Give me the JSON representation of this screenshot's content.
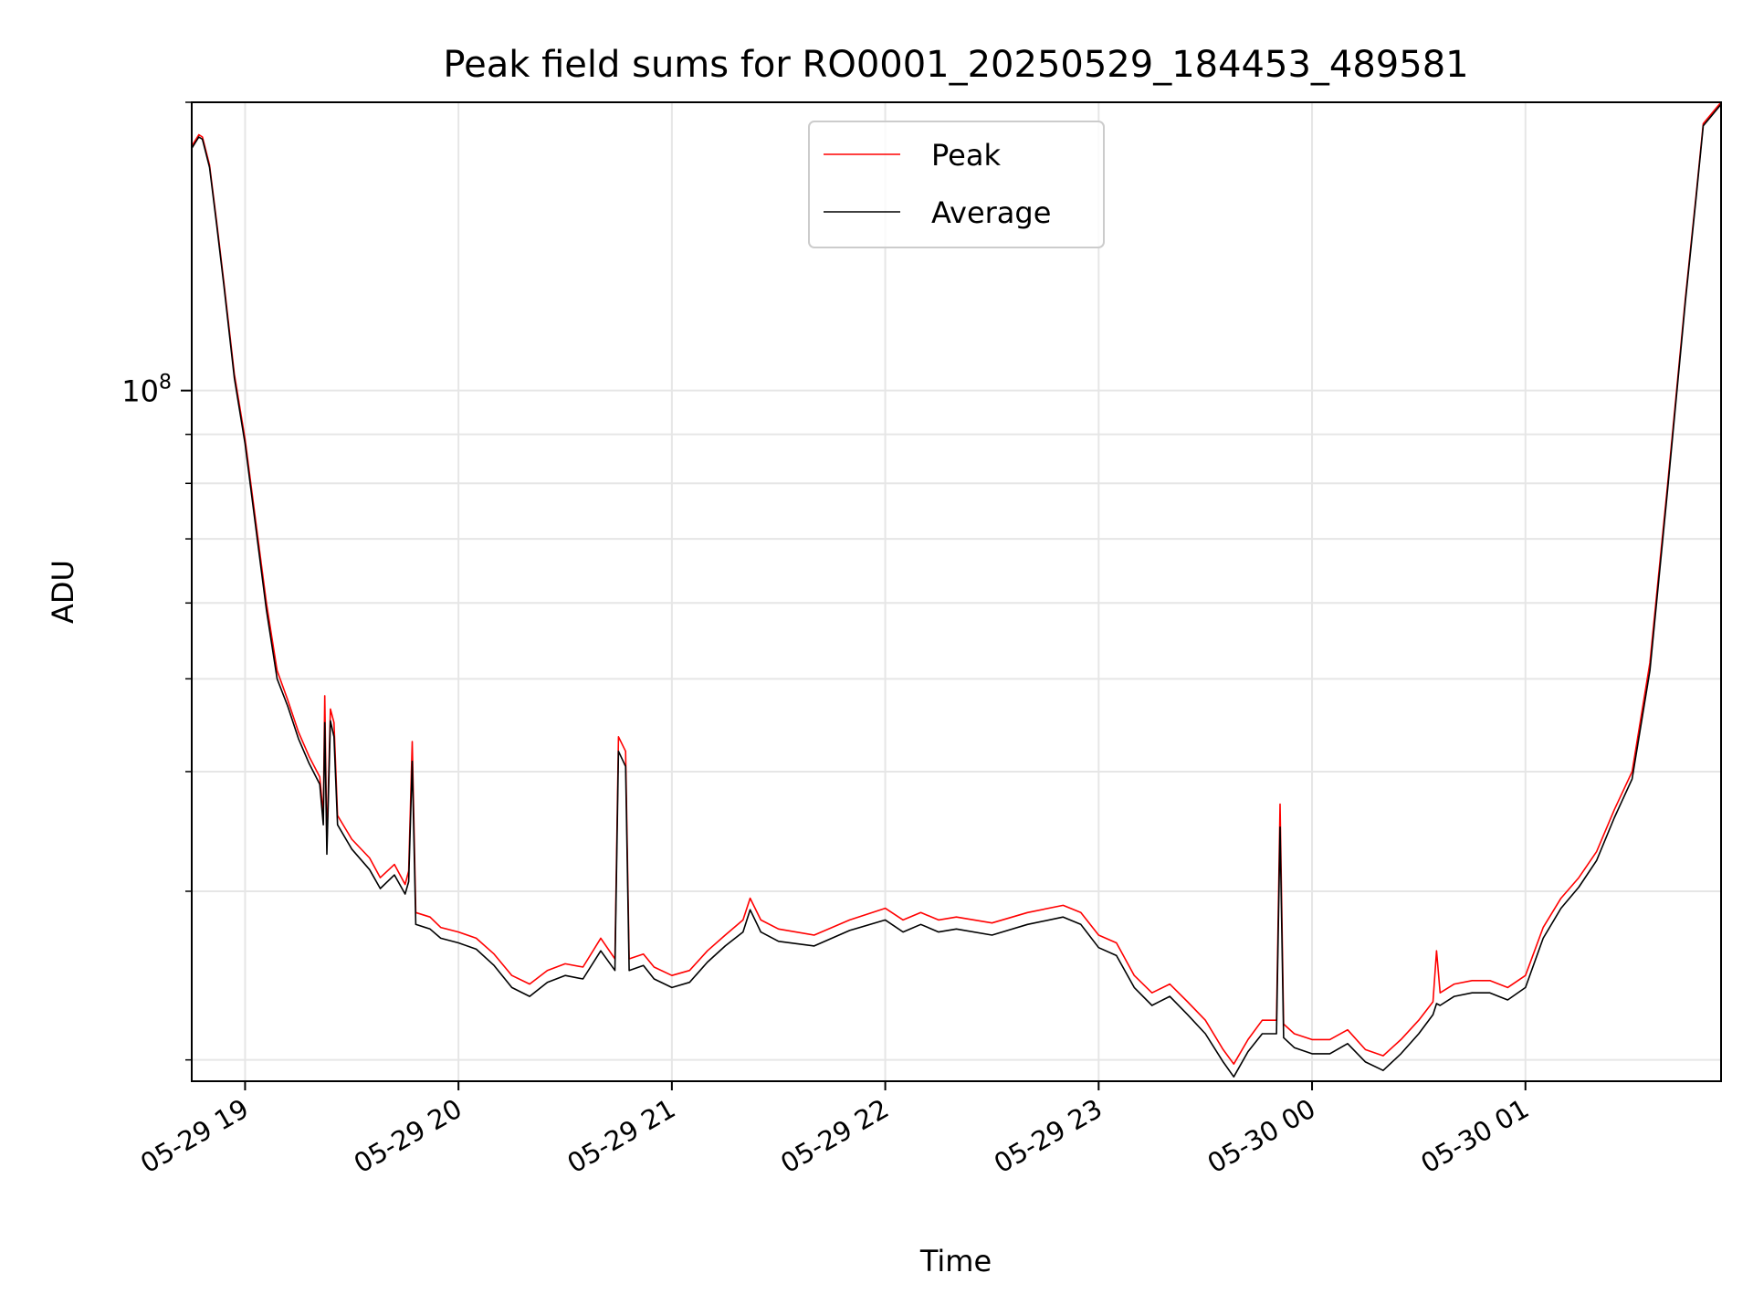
{
  "chart_data": {
    "type": "line",
    "title": "Peak field sums for RO0001_20250529_184453_489581",
    "xlabel": "Time",
    "ylabel": "ADU",
    "y_scale": "log",
    "ylim": [
      19000000,
      200000000
    ],
    "y_major_tick": {
      "value": 100000000,
      "label_base": "10",
      "label_exp": "8"
    },
    "y_minor_ticks": [
      20000000,
      30000000,
      40000000,
      50000000,
      60000000,
      70000000,
      80000000,
      90000000,
      200000000
    ],
    "xlim": [
      "2025-05-29 18:45",
      "2025-05-30 01:55"
    ],
    "x_ticks": [
      {
        "t": "2025-05-29 19:00",
        "label": "05-29 19"
      },
      {
        "t": "2025-05-29 20:00",
        "label": "05-29 20"
      },
      {
        "t": "2025-05-29 21:00",
        "label": "05-29 21"
      },
      {
        "t": "2025-05-29 22:00",
        "label": "05-29 22"
      },
      {
        "t": "2025-05-29 23:00",
        "label": "05-29 23"
      },
      {
        "t": "2025-05-30 00:00",
        "label": "05-30 00"
      },
      {
        "t": "2025-05-30 01:00",
        "label": "05-30 01"
      }
    ],
    "grid": true,
    "legend_position": "upper center",
    "series": [
      {
        "name": "Peak",
        "color": "#ff0000",
        "points": [
          [
            "2025-05-29 18:45",
            180000000
          ],
          [
            "2025-05-29 18:47",
            185000000
          ],
          [
            "2025-05-29 18:48",
            184000000
          ],
          [
            "2025-05-29 18:50",
            172000000
          ],
          [
            "2025-05-29 18:52",
            150000000
          ],
          [
            "2025-05-29 18:54",
            130000000
          ],
          [
            "2025-05-29 18:57",
            104000000
          ],
          [
            "2025-05-29 19:00",
            89000000
          ],
          [
            "2025-05-29 19:03",
            73000000
          ],
          [
            "2025-05-29 19:06",
            60000000
          ],
          [
            "2025-05-29 19:09",
            51000000
          ],
          [
            "2025-05-29 19:12",
            47500000
          ],
          [
            "2025-05-29 19:15",
            44000000
          ],
          [
            "2025-05-29 19:18",
            41500000
          ],
          [
            "2025-05-29 19:21",
            39500000
          ],
          [
            "2025-05-29 19:22",
            36000000
          ],
          [
            "2025-05-29 19:22.4",
            48000000
          ],
          [
            "2025-05-29 19:23",
            33500000
          ],
          [
            "2025-05-29 19:24",
            46500000
          ],
          [
            "2025-05-29 19:25",
            45000000
          ],
          [
            "2025-05-29 19:26",
            36000000
          ],
          [
            "2025-05-29 19:30",
            34000000
          ],
          [
            "2025-05-29 19:35",
            32500000
          ],
          [
            "2025-05-29 19:38",
            31000000
          ],
          [
            "2025-05-29 19:42",
            32000000
          ],
          [
            "2025-05-29 19:45",
            30500000
          ],
          [
            "2025-05-29 19:46",
            31500000
          ],
          [
            "2025-05-29 19:47",
            43000000
          ],
          [
            "2025-05-29 19:48",
            28500000
          ],
          [
            "2025-05-29 19:52",
            28200000
          ],
          [
            "2025-05-29 19:55",
            27500000
          ],
          [
            "2025-05-29 20:00",
            27200000
          ],
          [
            "2025-05-29 20:05",
            26800000
          ],
          [
            "2025-05-29 20:10",
            25800000
          ],
          [
            "2025-05-29 20:15",
            24500000
          ],
          [
            "2025-05-29 20:20",
            24000000
          ],
          [
            "2025-05-29 20:25",
            24800000
          ],
          [
            "2025-05-29 20:30",
            25200000
          ],
          [
            "2025-05-29 20:35",
            25000000
          ],
          [
            "2025-05-29 20:40",
            26800000
          ],
          [
            "2025-05-29 20:44",
            25500000
          ],
          [
            "2025-05-29 20:45",
            43500000
          ],
          [
            "2025-05-29 20:47",
            42000000
          ],
          [
            "2025-05-29 20:48",
            25500000
          ],
          [
            "2025-05-29 20:52",
            25800000
          ],
          [
            "2025-05-29 20:55",
            25000000
          ],
          [
            "2025-05-29 21:00",
            24500000
          ],
          [
            "2025-05-29 21:05",
            24800000
          ],
          [
            "2025-05-29 21:10",
            26000000
          ],
          [
            "2025-05-29 21:15",
            27000000
          ],
          [
            "2025-05-29 21:20",
            28000000
          ],
          [
            "2025-05-29 21:22",
            29500000
          ],
          [
            "2025-05-29 21:25",
            28000000
          ],
          [
            "2025-05-29 21:30",
            27400000
          ],
          [
            "2025-05-29 21:40",
            27000000
          ],
          [
            "2025-05-29 21:50",
            28000000
          ],
          [
            "2025-05-29 22:00",
            28800000
          ],
          [
            "2025-05-29 22:05",
            28000000
          ],
          [
            "2025-05-29 22:10",
            28500000
          ],
          [
            "2025-05-29 22:15",
            28000000
          ],
          [
            "2025-05-29 22:20",
            28200000
          ],
          [
            "2025-05-29 22:30",
            27800000
          ],
          [
            "2025-05-29 22:40",
            28500000
          ],
          [
            "2025-05-29 22:50",
            29000000
          ],
          [
            "2025-05-29 22:55",
            28500000
          ],
          [
            "2025-05-29 23:00",
            27000000
          ],
          [
            "2025-05-29 23:05",
            26500000
          ],
          [
            "2025-05-29 23:10",
            24500000
          ],
          [
            "2025-05-29 23:15",
            23500000
          ],
          [
            "2025-05-29 23:20",
            24000000
          ],
          [
            "2025-05-29 23:25",
            23000000
          ],
          [
            "2025-05-29 23:30",
            22000000
          ],
          [
            "2025-05-29 23:35",
            20500000
          ],
          [
            "2025-05-29 23:38",
            19800000
          ],
          [
            "2025-05-29 23:42",
            21000000
          ],
          [
            "2025-05-29 23:46",
            22000000
          ],
          [
            "2025-05-29 23:50",
            22000000
          ],
          [
            "2025-05-29 23:51",
            37000000
          ],
          [
            "2025-05-29 23:52",
            21800000
          ],
          [
            "2025-05-29 23:55",
            21300000
          ],
          [
            "2025-05-30 00:00",
            21000000
          ],
          [
            "2025-05-30 00:05",
            21000000
          ],
          [
            "2025-05-30 00:10",
            21500000
          ],
          [
            "2025-05-30 00:15",
            20500000
          ],
          [
            "2025-05-30 00:20",
            20200000
          ],
          [
            "2025-05-30 00:25",
            21000000
          ],
          [
            "2025-05-30 00:30",
            22000000
          ],
          [
            "2025-05-30 00:34",
            23000000
          ],
          [
            "2025-05-30 00:35",
            26000000
          ],
          [
            "2025-05-30 00:36",
            23500000
          ],
          [
            "2025-05-30 00:40",
            24000000
          ],
          [
            "2025-05-30 00:45",
            24200000
          ],
          [
            "2025-05-30 00:50",
            24200000
          ],
          [
            "2025-05-30 00:55",
            23800000
          ],
          [
            "2025-05-30 01:00",
            24500000
          ],
          [
            "2025-05-30 01:05",
            27500000
          ],
          [
            "2025-05-30 01:10",
            29500000
          ],
          [
            "2025-05-30 01:15",
            31000000
          ],
          [
            "2025-05-30 01:20",
            33000000
          ],
          [
            "2025-05-30 01:25",
            36500000
          ],
          [
            "2025-05-30 01:30",
            40000000
          ],
          [
            "2025-05-30 01:35",
            52000000
          ],
          [
            "2025-05-30 01:40",
            80000000
          ],
          [
            "2025-05-30 01:45",
            125000000
          ],
          [
            "2025-05-30 01:48",
            160000000
          ],
          [
            "2025-05-30 01:50",
            190000000
          ],
          [
            "2025-05-30 01:55",
            200000000
          ]
        ]
      },
      {
        "name": "Average",
        "color": "#000000",
        "points": [
          [
            "2025-05-29 18:45",
            179000000
          ],
          [
            "2025-05-29 18:47",
            184000000
          ],
          [
            "2025-05-29 18:48",
            183000000
          ],
          [
            "2025-05-29 18:50",
            171000000
          ],
          [
            "2025-05-29 18:52",
            149000000
          ],
          [
            "2025-05-29 18:54",
            129000000
          ],
          [
            "2025-05-29 18:57",
            103000000
          ],
          [
            "2025-05-29 19:00",
            88000000
          ],
          [
            "2025-05-29 19:03",
            72000000
          ],
          [
            "2025-05-29 19:06",
            59000000
          ],
          [
            "2025-05-29 19:09",
            50000000
          ],
          [
            "2025-05-29 19:12",
            46800000
          ],
          [
            "2025-05-29 19:15",
            43300000
          ],
          [
            "2025-05-29 19:18",
            40800000
          ],
          [
            "2025-05-29 19:21",
            38800000
          ],
          [
            "2025-05-29 19:22",
            35200000
          ],
          [
            "2025-05-29 19:22.4",
            45000000
          ],
          [
            "2025-05-29 19:23",
            32800000
          ],
          [
            "2025-05-29 19:24",
            45200000
          ],
          [
            "2025-05-29 19:25",
            43500000
          ],
          [
            "2025-05-29 19:26",
            35200000
          ],
          [
            "2025-05-29 19:30",
            33200000
          ],
          [
            "2025-05-29 19:35",
            31600000
          ],
          [
            "2025-05-29 19:38",
            30200000
          ],
          [
            "2025-05-29 19:42",
            31200000
          ],
          [
            "2025-05-29 19:45",
            29800000
          ],
          [
            "2025-05-29 19:46",
            30700000
          ],
          [
            "2025-05-29 19:47",
            41000000
          ],
          [
            "2025-05-29 19:48",
            27700000
          ],
          [
            "2025-05-29 19:52",
            27400000
          ],
          [
            "2025-05-29 19:55",
            26800000
          ],
          [
            "2025-05-29 20:00",
            26500000
          ],
          [
            "2025-05-29 20:05",
            26100000
          ],
          [
            "2025-05-29 20:10",
            25100000
          ],
          [
            "2025-05-29 20:15",
            23800000
          ],
          [
            "2025-05-29 20:20",
            23300000
          ],
          [
            "2025-05-29 20:25",
            24100000
          ],
          [
            "2025-05-29 20:30",
            24500000
          ],
          [
            "2025-05-29 20:35",
            24300000
          ],
          [
            "2025-05-29 20:40",
            26000000
          ],
          [
            "2025-05-29 20:44",
            24800000
          ],
          [
            "2025-05-29 20:45",
            42000000
          ],
          [
            "2025-05-29 20:47",
            40500000
          ],
          [
            "2025-05-29 20:48",
            24800000
          ],
          [
            "2025-05-29 20:52",
            25100000
          ],
          [
            "2025-05-29 20:55",
            24300000
          ],
          [
            "2025-05-29 21:00",
            23800000
          ],
          [
            "2025-05-29 21:05",
            24100000
          ],
          [
            "2025-05-29 21:10",
            25300000
          ],
          [
            "2025-05-29 21:15",
            26300000
          ],
          [
            "2025-05-29 21:20",
            27200000
          ],
          [
            "2025-05-29 21:22",
            28700000
          ],
          [
            "2025-05-29 21:25",
            27200000
          ],
          [
            "2025-05-29 21:30",
            26600000
          ],
          [
            "2025-05-29 21:40",
            26300000
          ],
          [
            "2025-05-29 21:50",
            27300000
          ],
          [
            "2025-05-29 22:00",
            28000000
          ],
          [
            "2025-05-29 22:05",
            27200000
          ],
          [
            "2025-05-29 22:10",
            27700000
          ],
          [
            "2025-05-29 22:15",
            27200000
          ],
          [
            "2025-05-29 22:20",
            27400000
          ],
          [
            "2025-05-29 22:30",
            27000000
          ],
          [
            "2025-05-29 22:40",
            27700000
          ],
          [
            "2025-05-29 22:50",
            28200000
          ],
          [
            "2025-05-29 22:55",
            27700000
          ],
          [
            "2025-05-29 23:00",
            26200000
          ],
          [
            "2025-05-29 23:05",
            25700000
          ],
          [
            "2025-05-29 23:10",
            23800000
          ],
          [
            "2025-05-29 23:15",
            22800000
          ],
          [
            "2025-05-29 23:20",
            23300000
          ],
          [
            "2025-05-29 23:25",
            22300000
          ],
          [
            "2025-05-29 23:30",
            21300000
          ],
          [
            "2025-05-29 23:35",
            19900000
          ],
          [
            "2025-05-29 23:38",
            19200000
          ],
          [
            "2025-05-29 23:42",
            20400000
          ],
          [
            "2025-05-29 23:46",
            21300000
          ],
          [
            "2025-05-29 23:50",
            21300000
          ],
          [
            "2025-05-29 23:51",
            35000000
          ],
          [
            "2025-05-29 23:52",
            21100000
          ],
          [
            "2025-05-29 23:55",
            20600000
          ],
          [
            "2025-05-30 00:00",
            20300000
          ],
          [
            "2025-05-30 00:05",
            20300000
          ],
          [
            "2025-05-30 00:10",
            20800000
          ],
          [
            "2025-05-30 00:15",
            19900000
          ],
          [
            "2025-05-30 00:20",
            19500000
          ],
          [
            "2025-05-30 00:25",
            20300000
          ],
          [
            "2025-05-30 00:30",
            21300000
          ],
          [
            "2025-05-30 00:34",
            22300000
          ],
          [
            "2025-05-30 00:35",
            22900000
          ],
          [
            "2025-05-30 00:36",
            22800000
          ],
          [
            "2025-05-30 00:40",
            23300000
          ],
          [
            "2025-05-30 00:45",
            23500000
          ],
          [
            "2025-05-30 00:50",
            23500000
          ],
          [
            "2025-05-30 00:55",
            23100000
          ],
          [
            "2025-05-30 01:00",
            23800000
          ],
          [
            "2025-05-30 01:05",
            26800000
          ],
          [
            "2025-05-30 01:10",
            28800000
          ],
          [
            "2025-05-30 01:15",
            30300000
          ],
          [
            "2025-05-30 01:20",
            32300000
          ],
          [
            "2025-05-30 01:25",
            35800000
          ],
          [
            "2025-05-30 01:30",
            39300000
          ],
          [
            "2025-05-30 01:35",
            51000000
          ],
          [
            "2025-05-30 01:40",
            79000000
          ],
          [
            "2025-05-30 01:45",
            124000000
          ],
          [
            "2025-05-30 01:48",
            159000000
          ],
          [
            "2025-05-30 01:50",
            189000000
          ],
          [
            "2025-05-30 01:55",
            199000000
          ]
        ]
      }
    ]
  }
}
